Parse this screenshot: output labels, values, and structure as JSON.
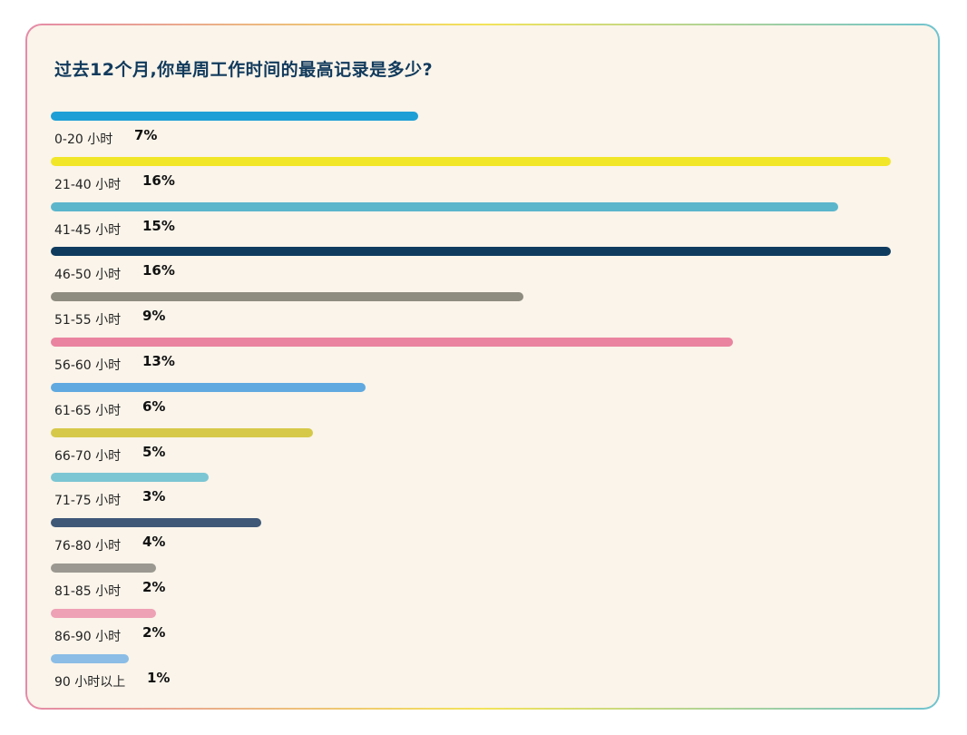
{
  "chart_data": {
    "type": "bar",
    "orientation": "horizontal",
    "title": "过去12个月,你单周工作时间的最高记录是多少?",
    "categories": [
      "0-20 小时",
      "21-40 小时",
      "41-45 小时",
      "46-50 小时",
      "51-55 小时",
      "56-60 小时",
      "61-65 小时",
      "66-70 小时",
      "71-75 小时",
      "76-80 小时",
      "81-85 小时",
      "86-90 小时",
      "90 小时以上"
    ],
    "values": [
      7,
      16,
      15,
      16,
      9,
      13,
      6,
      5,
      3,
      4,
      2,
      2,
      1
    ],
    "labels": [
      "7%",
      "16%",
      "15%",
      "16%",
      "9%",
      "13%",
      "6%",
      "5%",
      "3%",
      "4%",
      "2%",
      "2%",
      "1%"
    ],
    "colors": [
      "#1e9fd6",
      "#f2e628",
      "#5bb6cc",
      "#0f3b5f",
      "#8e8b80",
      "#e9839f",
      "#5fa9e0",
      "#d6c94a",
      "#7cc6d4",
      "#3f5878",
      "#9a9890",
      "#eea0b5",
      "#8bbde6"
    ],
    "unit": "%",
    "xlim": [
      0,
      16.5
    ],
    "grid": false,
    "legend": "none"
  }
}
